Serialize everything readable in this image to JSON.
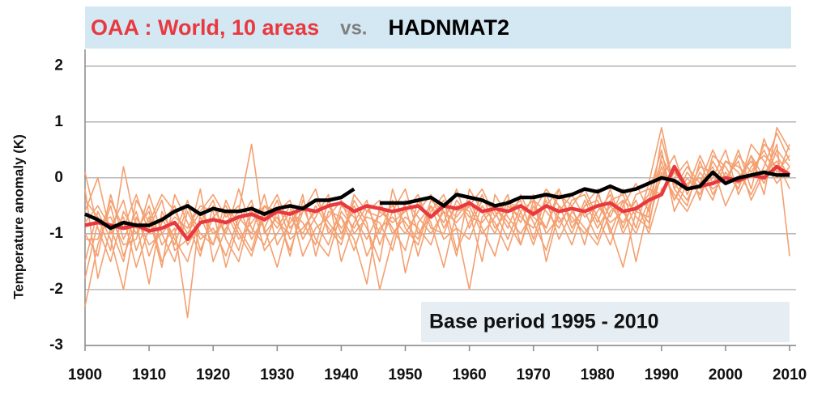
{
  "chart_data": {
    "type": "line",
    "legend_joiner": "vs.",
    "y_label": "Temperature anomaly (K)",
    "annotation": "Base period 1995 - 2010",
    "xlim": [
      1900,
      2011
    ],
    "xticks": [
      1900,
      1910,
      1920,
      1930,
      1940,
      1950,
      1960,
      1970,
      1980,
      1990,
      2000,
      2010
    ],
    "ylim": [
      -3,
      2.3
    ],
    "yticks": [
      -3,
      -2,
      -1,
      0,
      1,
      2
    ],
    "grid": true,
    "x": [
      1900,
      1902,
      1904,
      1906,
      1908,
      1910,
      1912,
      1914,
      1916,
      1918,
      1920,
      1922,
      1924,
      1926,
      1928,
      1930,
      1932,
      1934,
      1936,
      1938,
      1940,
      1942,
      1944,
      1946,
      1948,
      1950,
      1952,
      1954,
      1956,
      1958,
      1960,
      1962,
      1964,
      1966,
      1968,
      1970,
      1972,
      1974,
      1976,
      1978,
      1980,
      1982,
      1984,
      1986,
      1988,
      1990,
      1992,
      1994,
      1996,
      1998,
      2000,
      2002,
      2004,
      2006,
      2008,
      2010
    ],
    "series": [
      {
        "color": "#f4a070",
        "values": [
          -2.3,
          -1.2,
          -0.5,
          -1.4,
          -0.8,
          -1.9,
          -0.6,
          -1.1,
          -1.5,
          -0.7,
          -1.2,
          -0.4,
          -0.9,
          -1.3,
          -0.5,
          -0.8,
          -1.0,
          -0.3,
          -1.4,
          -0.6,
          -0.7,
          -1.1,
          -1.9,
          -0.5,
          -0.9,
          -1.3,
          -0.4,
          -0.8,
          -1.6,
          -0.6,
          -0.5,
          -1.0,
          -0.7,
          -0.3,
          -1.2,
          -0.5,
          -0.9,
          -0.2,
          -0.8,
          -0.6,
          -1.1,
          -0.4,
          -0.3,
          -0.9,
          -0.1,
          0.9,
          -0.2,
          -0.5,
          0.3,
          -0.3,
          0.1,
          -0.2,
          0.4,
          0.0,
          0.6,
          -1.4
        ]
      },
      {
        "color": "#f4a070",
        "values": [
          -0.2,
          -1.8,
          -0.9,
          -0.4,
          -1.3,
          -0.7,
          -1.6,
          -0.3,
          -0.8,
          -1.4,
          -0.5,
          -1.0,
          -0.2,
          -0.9,
          -1.2,
          -0.6,
          -0.4,
          -1.1,
          -0.7,
          -0.3,
          -1.5,
          -0.8,
          -0.4,
          -1.2,
          -0.6,
          -0.2,
          -1.0,
          -0.7,
          -0.4,
          -1.3,
          -0.8,
          -0.3,
          -0.9,
          -0.6,
          -0.4,
          -1.1,
          -0.3,
          -0.8,
          -0.5,
          -0.2,
          -0.7,
          -1.2,
          -0.5,
          -0.1,
          -0.6,
          0.2,
          -0.4,
          0.0,
          -0.3,
          0.3,
          -0.1,
          0.5,
          -0.2,
          0.7,
          0.1,
          0.4
        ]
      },
      {
        "color": "#f4a070",
        "values": [
          0.1,
          -0.9,
          -1.5,
          -0.6,
          -1.0,
          -0.5,
          -1.2,
          -0.9,
          -2.5,
          -0.6,
          -1.0,
          -0.8,
          -1.3,
          -0.5,
          -0.9,
          -1.6,
          -0.7,
          -1.0,
          -0.5,
          -0.9,
          -1.2,
          -0.4,
          -0.8,
          -2.0,
          -1.1,
          -0.5,
          -1.4,
          -0.6,
          -0.3,
          -0.9,
          -1.1,
          -0.5,
          -0.8,
          -1.3,
          -0.6,
          -0.4,
          -1.0,
          -0.7,
          -1.2,
          -0.5,
          -0.4,
          -0.9,
          -1.6,
          -0.6,
          -0.3,
          0.5,
          -0.6,
          -0.1,
          0.0,
          -0.4,
          0.3,
          0.1,
          -0.3,
          0.2,
          0.8,
          0.3
        ]
      },
      {
        "color": "#f4a070",
        "values": [
          -1.5,
          -0.6,
          -1.1,
          -2.0,
          -0.7,
          -1.2,
          -1.0,
          -1.5,
          -0.6,
          -1.1,
          -0.9,
          -1.4,
          -0.7,
          -1.0,
          -0.3,
          -1.2,
          -0.8,
          -0.5,
          -1.1,
          -1.4,
          -0.6,
          -0.9,
          -0.5,
          -1.0,
          -0.4,
          -1.7,
          -0.8,
          -0.5,
          -1.1,
          -0.9,
          -2.0,
          -0.7,
          -0.5,
          -0.9,
          -0.3,
          -0.8,
          -1.3,
          -0.5,
          -0.7,
          -1.0,
          -0.6,
          -0.3,
          -1.0,
          -0.5,
          -0.8,
          0.1,
          -0.3,
          -0.6,
          -0.1,
          0.2,
          -0.5,
          0.0,
          0.3,
          -0.1,
          0.5,
          0.2
        ]
      },
      {
        "color": "#f4a070",
        "values": [
          -0.6,
          0.0,
          -1.0,
          -0.7,
          -1.6,
          -0.9,
          -0.4,
          -1.3,
          -1.1,
          -0.2,
          -1.5,
          -0.9,
          -0.6,
          0.6,
          -1.0,
          -0.7,
          -1.3,
          -0.6,
          -0.2,
          -1.0,
          -0.7,
          -1.3,
          -0.6,
          -0.4,
          -1.0,
          -0.7,
          -0.9,
          -1.2,
          -0.5,
          -0.7,
          -0.4,
          -0.9,
          -1.4,
          -0.5,
          -0.7,
          -0.9,
          -0.4,
          -1.1,
          -0.6,
          -0.9,
          -1.2,
          -0.6,
          -0.4,
          -1.5,
          -0.5,
          0.0,
          0.4,
          -0.3,
          0.2,
          0.1,
          -0.1,
          0.4,
          0.1,
          0.5,
          0.0,
          0.6
        ]
      },
      {
        "color": "#f4a070",
        "values": [
          -1.0,
          -1.4,
          -0.3,
          -1.1,
          -0.6,
          -1.4,
          -0.8,
          -0.5,
          -1.2,
          -0.8,
          -0.4,
          -1.1,
          -1.5,
          -0.6,
          -0.9,
          -0.4,
          -1.1,
          -0.9,
          -0.6,
          -0.5,
          -0.9,
          -0.6,
          -1.4,
          -0.9,
          -0.7,
          -1.0,
          -0.6,
          -0.3,
          -0.9,
          -0.5,
          -0.6,
          -1.5,
          -0.3,
          -0.7,
          -1.0,
          -0.6,
          -0.2,
          -0.5,
          -1.0,
          -0.4,
          -0.9,
          -0.5,
          -0.8,
          -0.4,
          -1.0,
          -0.2,
          0.0,
          0.3,
          -0.4,
          0.4,
          0.2,
          -0.2,
          0.6,
          0.3,
          -0.1,
          0.2
        ]
      },
      {
        "color": "#f4a070",
        "values": [
          -0.4,
          -0.7,
          -1.3,
          0.2,
          -0.9,
          -0.6,
          -1.5,
          -1.0,
          -0.4,
          -1.3,
          -0.7,
          -0.5,
          -1.0,
          -1.4,
          -0.6,
          -0.9,
          -0.5,
          -1.4,
          -0.9,
          -0.7,
          -0.4,
          -1.0,
          -0.7,
          -0.8,
          -1.3,
          -0.4,
          -0.7,
          -1.0,
          -0.6,
          -1.4,
          -0.2,
          -0.6,
          -1.0,
          -0.4,
          -0.8,
          -0.3,
          -1.5,
          -0.6,
          -0.3,
          -0.7,
          -0.5,
          -0.8,
          -0.6,
          -1.0,
          -0.4,
          0.3,
          -0.4,
          0.1,
          -0.2,
          0.0,
          0.5,
          -0.3,
          0.2,
          0.4,
          0.2,
          0.1
        ]
      },
      {
        "color": "#f4a070",
        "values": [
          -1.8,
          -0.8,
          -0.7,
          -1.2,
          -1.1,
          -0.3,
          -1.0,
          -0.7,
          -0.9,
          -0.5,
          -0.6,
          -1.6,
          -0.8,
          -0.4,
          -1.3,
          -1.0,
          -0.6,
          -0.8,
          -1.2,
          -0.4,
          -1.0,
          -0.5,
          -0.9,
          -1.5,
          -0.2,
          -0.9,
          -1.2,
          -0.5,
          -0.8,
          -0.2,
          -0.9,
          -0.4,
          -0.6,
          -1.1,
          -0.5,
          -0.7,
          -0.9,
          -0.3,
          -0.5,
          -1.2,
          -0.3,
          -0.7,
          -0.2,
          -0.7,
          -0.9,
          0.4,
          -0.1,
          -0.4,
          0.1,
          -0.2,
          0.0,
          0.3,
          -0.4,
          0.1,
          0.3,
          -0.2
        ]
      },
      {
        "color": "#f4a070",
        "values": [
          -1.1,
          -1.1,
          -0.4,
          -0.9,
          -0.3,
          -1.0,
          -0.7,
          -1.2,
          -0.5,
          -1.0,
          -1.2,
          -0.6,
          -1.1,
          -0.8,
          -0.5,
          -0.6,
          -1.4,
          -0.4,
          -0.8,
          -1.2,
          -0.5,
          -0.7,
          -1.1,
          -0.6,
          -0.8,
          -0.6,
          -0.3,
          -0.9,
          -1.0,
          -0.4,
          -0.7,
          -0.8,
          -0.5,
          -0.8,
          -1.2,
          -0.4,
          -0.6,
          -0.9,
          -0.4,
          -0.3,
          -0.8,
          -0.2,
          -0.9,
          -0.3,
          -0.2,
          -0.3,
          0.1,
          -0.2,
          0.4,
          -0.1,
          0.3,
          0.2,
          0.0,
          0.6,
          0.4,
          0.0
        ]
      },
      {
        "color": "#f4a070",
        "values": [
          -0.8,
          -0.5,
          -0.9,
          -1.5,
          -0.4,
          -0.8,
          -0.3,
          -0.6,
          -1.0,
          -0.6,
          -0.3,
          -0.7,
          -0.5,
          -1.1,
          -0.7,
          -0.3,
          -0.9,
          -0.6,
          -0.4,
          -0.8,
          -1.1,
          -0.3,
          -0.6,
          -0.7,
          -0.5,
          -0.8,
          -1.1,
          -0.4,
          -0.6,
          -0.8,
          -0.5,
          -0.2,
          -0.7,
          -0.4,
          -0.6,
          -1.2,
          -0.5,
          -0.2,
          -0.9,
          -0.5,
          -0.2,
          -1.0,
          -0.4,
          -0.6,
          -0.7,
          0.7,
          -0.2,
          0.2,
          -0.1,
          0.5,
          0.0,
          -0.1,
          0.4,
          -0.3,
          0.9,
          0.5
        ]
      },
      {
        "name": "OAA : World, 10 areas",
        "color": "#e8393f",
        "values": [
          -0.85,
          -0.8,
          -0.85,
          -0.9,
          -0.85,
          -0.95,
          -0.9,
          -0.8,
          -1.1,
          -0.8,
          -0.75,
          -0.8,
          -0.7,
          -0.65,
          -0.75,
          -0.6,
          -0.65,
          -0.55,
          -0.6,
          -0.5,
          -0.45,
          -0.6,
          -0.5,
          -0.55,
          -0.6,
          -0.55,
          -0.5,
          -0.7,
          -0.5,
          -0.55,
          -0.45,
          -0.6,
          -0.55,
          -0.6,
          -0.5,
          -0.65,
          -0.5,
          -0.6,
          -0.55,
          -0.6,
          -0.5,
          -0.45,
          -0.6,
          -0.55,
          -0.4,
          -0.3,
          0.2,
          -0.2,
          -0.15,
          -0.1,
          0.0,
          -0.05,
          0.05,
          0.0,
          0.2,
          0.05
        ]
      },
      {
        "name": "HADNMAT2",
        "color": "#000000",
        "values": [
          -0.65,
          -0.75,
          -0.9,
          -0.8,
          -0.85,
          -0.85,
          -0.75,
          -0.6,
          -0.5,
          -0.65,
          -0.55,
          -0.6,
          -0.6,
          -0.55,
          -0.65,
          -0.55,
          -0.5,
          -0.55,
          -0.4,
          -0.4,
          -0.35,
          -0.2,
          null,
          -0.45,
          -0.45,
          -0.45,
          -0.4,
          -0.35,
          -0.5,
          -0.3,
          -0.35,
          -0.4,
          -0.5,
          -0.45,
          -0.35,
          -0.35,
          -0.3,
          -0.35,
          -0.3,
          -0.2,
          -0.25,
          -0.15,
          -0.25,
          -0.2,
          -0.1,
          0.0,
          -0.05,
          -0.2,
          -0.15,
          0.1,
          -0.1,
          0.0,
          0.05,
          0.1,
          0.05,
          0.05
        ]
      }
    ]
  }
}
